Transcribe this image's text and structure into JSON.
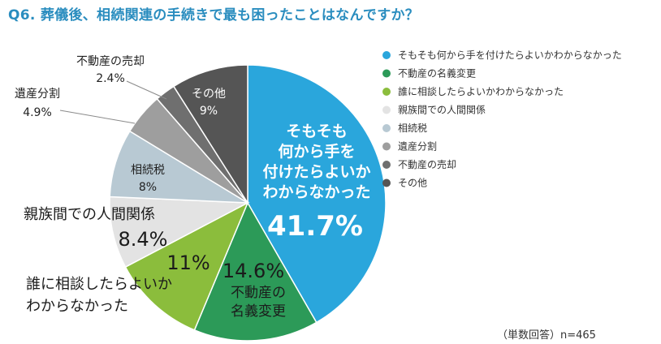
{
  "chart_data": {
    "type": "pie",
    "title": "Q6. 葬儀後、相続関連の手続きで最も困ったことはなんですか？",
    "note": "（単数回答）n=465",
    "legend_position": "right",
    "start_angle_deg": 0,
    "direction": "clockwise",
    "slices": [
      {
        "legend": "そもそも何から手を付けたらよいかわからなかった",
        "label_lines": [
          "そもそも",
          "何から手を",
          "付けたらよいか",
          "わからなかった"
        ],
        "value_text": "41.7%",
        "value": 41.7,
        "color": "#2aa6dc"
      },
      {
        "legend": "不動産の名義変更",
        "label_lines": [
          "不動産の",
          "名義変更"
        ],
        "value_text": "14.6%",
        "value": 14.6,
        "color": "#2c9a58"
      },
      {
        "legend": "誰に相談したらよいかわからなかった",
        "label_lines": [
          "誰に相談したらよいか",
          "わからなかった"
        ],
        "value_text": "11%",
        "value": 11,
        "color": "#8bbd3c"
      },
      {
        "legend": "親族間での人間関係",
        "label_lines": [
          "親族間での人間関係"
        ],
        "value_text": "8.4%",
        "value": 8.4,
        "color": "#e3e3e3"
      },
      {
        "legend": "相続税",
        "label_lines": [
          "相続税"
        ],
        "value_text": "8%",
        "value": 8,
        "color": "#b8c9d3"
      },
      {
        "legend": "遺産分割",
        "label_lines": [
          "遺産分割"
        ],
        "value_text": "4.9%",
        "value": 4.9,
        "color": "#9e9e9e"
      },
      {
        "legend": "不動産の売却",
        "label_lines": [
          "不動産の売却"
        ],
        "value_text": "2.4%",
        "value": 2.4,
        "color": "#6f6f6f"
      },
      {
        "legend": "その他",
        "label_lines": [
          "その他"
        ],
        "value_text": "9%",
        "value": 9,
        "color": "#555555"
      }
    ]
  }
}
